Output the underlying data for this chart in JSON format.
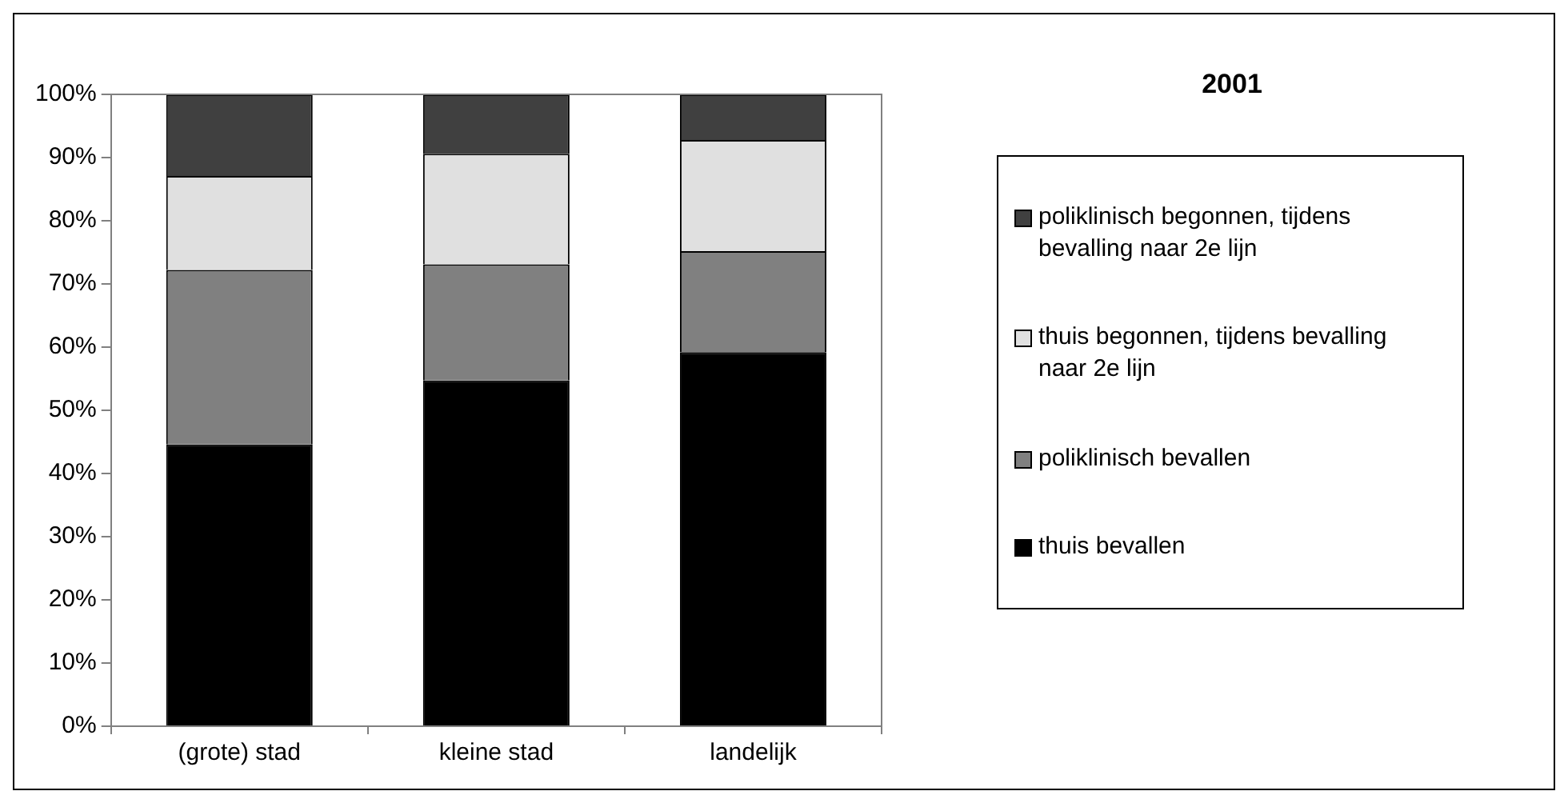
{
  "chart_data": {
    "type": "bar",
    "title": "2001",
    "stacked": true,
    "categories": [
      "(grote) stad",
      "kleine stad",
      "landelijk"
    ],
    "series": [
      {
        "name": "thuis bevallen",
        "color": "#000000",
        "values": [
          44.6,
          54.7,
          59.2
        ]
      },
      {
        "name": "poliklinisch bevallen",
        "color": "#808080",
        "values": [
          27.6,
          18.4,
          16.0
        ]
      },
      {
        "name": "thuis begonnen, tijdens bevalling naar 2e lijn",
        "color": "#e0e0e0",
        "values": [
          14.9,
          17.5,
          17.6
        ]
      },
      {
        "name": "poliklinisch begonnen, tijdens bevalling naar 2e lijn",
        "color": "#404040",
        "values": [
          12.9,
          9.4,
          7.2
        ]
      }
    ],
    "ylim": [
      0,
      100
    ],
    "yticks": [
      {
        "value": 0,
        "label": "0%"
      },
      {
        "value": 10,
        "label": "10%"
      },
      {
        "value": 20,
        "label": "20%"
      },
      {
        "value": 30,
        "label": "30%"
      },
      {
        "value": 40,
        "label": "40%"
      },
      {
        "value": 50,
        "label": "50%"
      },
      {
        "value": 60,
        "label": "60%"
      },
      {
        "value": 70,
        "label": "70%"
      },
      {
        "value": 80,
        "label": "80%"
      },
      {
        "value": 90,
        "label": "90%"
      },
      {
        "value": 100,
        "label": "100%"
      }
    ],
    "grid": false,
    "legend": "right"
  }
}
